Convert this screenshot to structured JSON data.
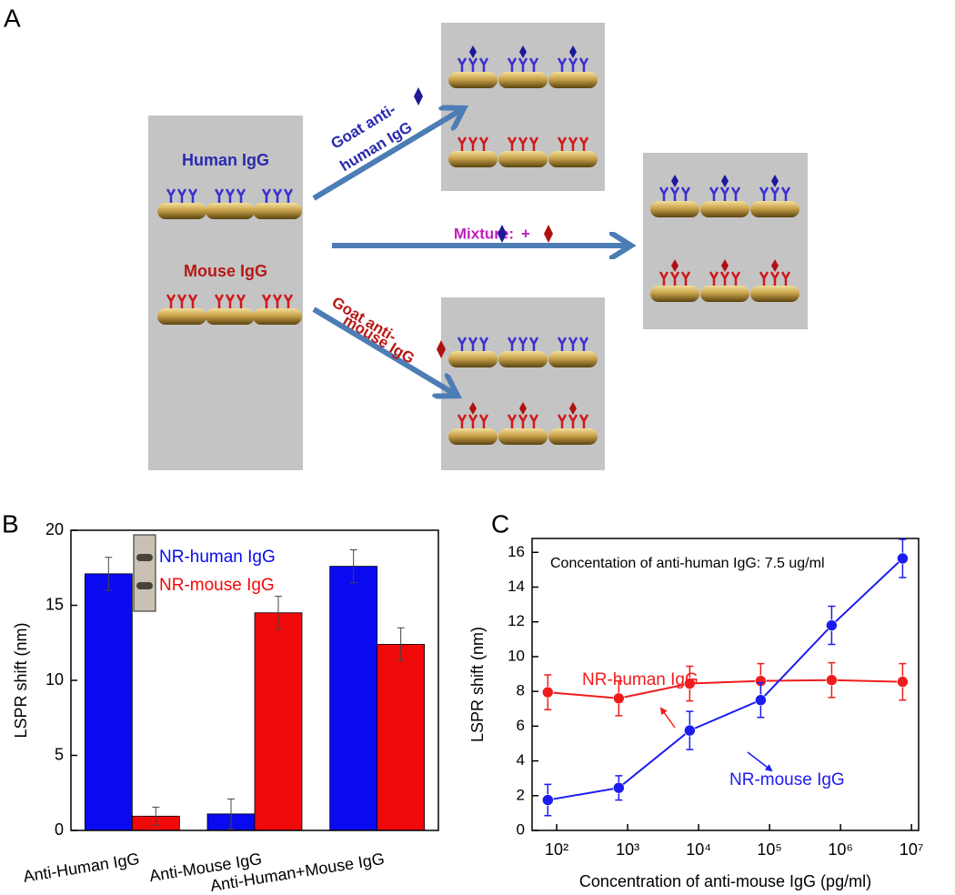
{
  "panels": {
    "a": "A",
    "b": "B",
    "c": "C"
  },
  "diagram": {
    "human": "Human IgG",
    "mouse": "Mouse IgG",
    "goat_human": [
      "Goat anti-",
      "human IgG"
    ],
    "goat_mouse": [
      "Goat anti-",
      "mouse IgG"
    ],
    "mixture": "Mixture:",
    "plus": "+"
  },
  "chart_data": [
    {
      "type": "bar",
      "ylabel": "LSPR shift (nm)",
      "categories": [
        "Anti-Human IgG",
        "Anti-Mouse IgG",
        "Anti-Human+Mouse IgG"
      ],
      "series": [
        {
          "name": "NR-human IgG",
          "color": "#0a0af0",
          "values": [
            17.1,
            1.1,
            17.6
          ],
          "errors": [
            1.1,
            1.0,
            1.1
          ]
        },
        {
          "name": "NR-mouse IgG",
          "color": "#f00a0a",
          "values": [
            0.95,
            14.5,
            12.4
          ],
          "errors": [
            0.6,
            1.1,
            1.1
          ]
        }
      ],
      "ylim": [
        0,
        20
      ],
      "yticks": [
        0,
        5,
        10,
        15,
        20
      ]
    },
    {
      "type": "line",
      "xlabel": "Concentration of anti-mouse IgG  (pg/ml)",
      "ylabel": "LSPR shift (nm)",
      "annotation": "Concentation of anti-human IgG: 7.5 ug/ml",
      "x": [
        75,
        750,
        7500,
        75000,
        750000,
        7500000
      ],
      "series": [
        {
          "name": "NR-human IgG",
          "color": "#f01c1c",
          "values": [
            7.95,
            7.6,
            8.45,
            8.6,
            8.65,
            8.55
          ],
          "errors": [
            1.0,
            1.0,
            1.0,
            1.0,
            1.0,
            1.05
          ]
        },
        {
          "name": "NR-mouse IgG",
          "color": "#1c1cf0",
          "values": [
            1.75,
            2.45,
            5.75,
            7.5,
            11.8,
            15.65
          ],
          "errors": [
            0.9,
            0.7,
            1.1,
            1.0,
            1.1,
            1.1
          ]
        }
      ],
      "xscale": "log",
      "xlim": [
        45,
        12600000
      ],
      "xticks": [
        {
          "value": 100,
          "label": "10²"
        },
        {
          "value": 1000,
          "label": "10³"
        },
        {
          "value": 10000,
          "label": "10⁴"
        },
        {
          "value": 100000,
          "label": "10⁵"
        },
        {
          "value": 1000000,
          "label": "10⁶"
        },
        {
          "value": 10000000,
          "label": "10⁷"
        }
      ],
      "ylim": [
        0,
        16.8
      ],
      "yticks": [
        0,
        2,
        4,
        6,
        8,
        10,
        12,
        14,
        16
      ]
    }
  ]
}
